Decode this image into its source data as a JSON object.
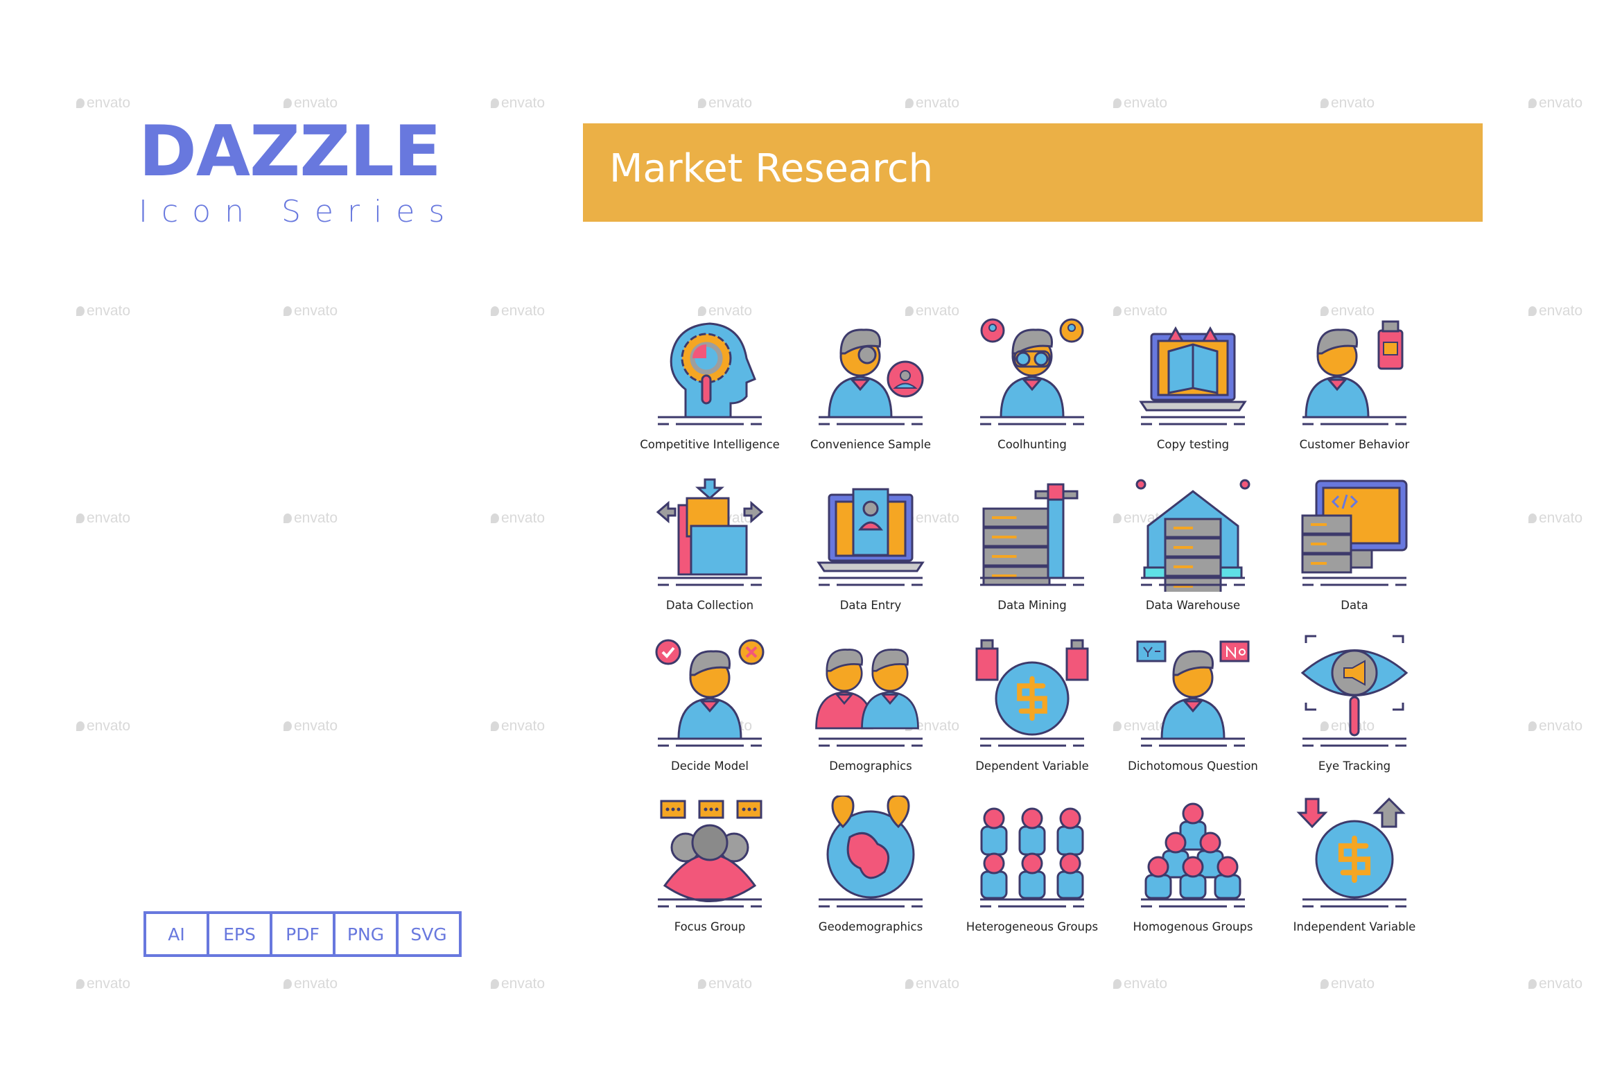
{
  "watermark": "envato",
  "brand": {
    "title": "DAZZLE",
    "subtitle": "Icon Series"
  },
  "banner": {
    "title": "Market Research",
    "color": "#ebb046"
  },
  "formats": [
    "AI",
    "EPS",
    "PDF",
    "PNG",
    "SVG"
  ],
  "accent": "#6878de",
  "icons": [
    {
      "label": "Competitive Intelligence",
      "icon": "head-gear-magnifier-icon"
    },
    {
      "label": "Convenience Sample",
      "icon": "person-magnifier-icon"
    },
    {
      "label": "Coolhunting",
      "icon": "person-binoculars-icon"
    },
    {
      "label": "Copy testing",
      "icon": "laptop-book-icon"
    },
    {
      "label": "Customer Behavior",
      "icon": "person-product-icon"
    },
    {
      "label": "Data Collection",
      "icon": "folder-arrows-icon"
    },
    {
      "label": "Data Entry",
      "icon": "laptop-profile-icon"
    },
    {
      "label": "Data Mining",
      "icon": "server-pickaxe-icon"
    },
    {
      "label": "Data Warehouse",
      "icon": "warehouse-server-icon"
    },
    {
      "label": "Data",
      "icon": "monitor-server-icon"
    },
    {
      "label": "Decide Model",
      "icon": "person-check-cross-icon"
    },
    {
      "label": "Demographics",
      "icon": "couple-chart-icon"
    },
    {
      "label": "Dependent Variable",
      "icon": "coin-products-icon"
    },
    {
      "label": "Dichotomous Question",
      "icon": "person-yes-no-icon"
    },
    {
      "label": "Eye Tracking",
      "icon": "eye-megaphone-icon"
    },
    {
      "label": "Focus Group",
      "icon": "group-chat-icon"
    },
    {
      "label": "Geodemographics",
      "icon": "globe-pins-icon"
    },
    {
      "label": "Heterogeneous Groups",
      "icon": "people-grid-icon"
    },
    {
      "label": "Homogenous Groups",
      "icon": "people-pyramid-icon"
    },
    {
      "label": "Independent Variable",
      "icon": "coin-arrows-icon"
    }
  ]
}
